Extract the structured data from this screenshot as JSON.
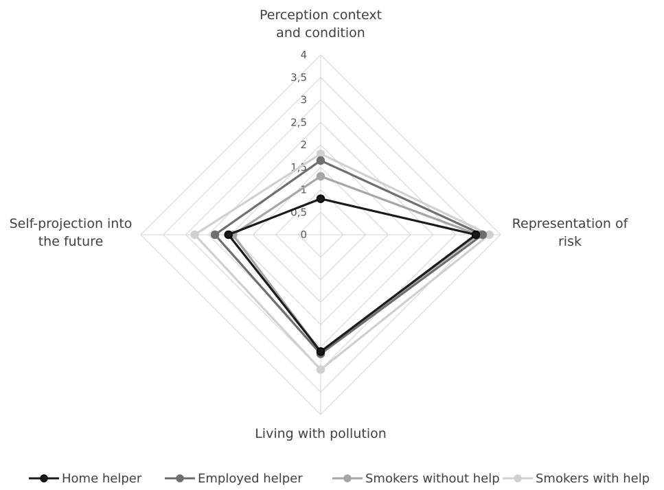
{
  "chart_data": {
    "type": "radar",
    "axes": [
      {
        "label_lines": [
          "Perception context",
          "and condition"
        ]
      },
      {
        "label_lines": [
          "Representation of",
          "risk"
        ]
      },
      {
        "label_lines": [
          "Living with pollution"
        ]
      },
      {
        "label_lines": [
          "Self-projection into",
          "the future"
        ]
      }
    ],
    "rlim": [
      0,
      4
    ],
    "ticks": [
      "0",
      "0,5",
      "1",
      "1,5",
      "2",
      "2,5",
      "3",
      "3,5",
      "4"
    ],
    "tick_values": [
      0,
      0.5,
      1,
      1.5,
      2,
      2.5,
      3,
      3.5,
      4
    ],
    "grid": true,
    "legend_position": "bottom",
    "series": [
      {
        "name": "Home helper",
        "color": "#1a1a1a",
        "values": [
          0.8,
          3.45,
          2.6,
          2.05
        ]
      },
      {
        "name": "Employed helper",
        "color": "#6e6e6e",
        "values": [
          1.65,
          3.6,
          2.65,
          2.35
        ]
      },
      {
        "name": "Smokers without help",
        "color": "#a6a6a6",
        "values": [
          1.3,
          3.5,
          2.6,
          1.95
        ]
      },
      {
        "name": "Smokers with help",
        "color": "#d0d0d0",
        "values": [
          1.8,
          3.75,
          3.0,
          2.8
        ]
      }
    ]
  }
}
